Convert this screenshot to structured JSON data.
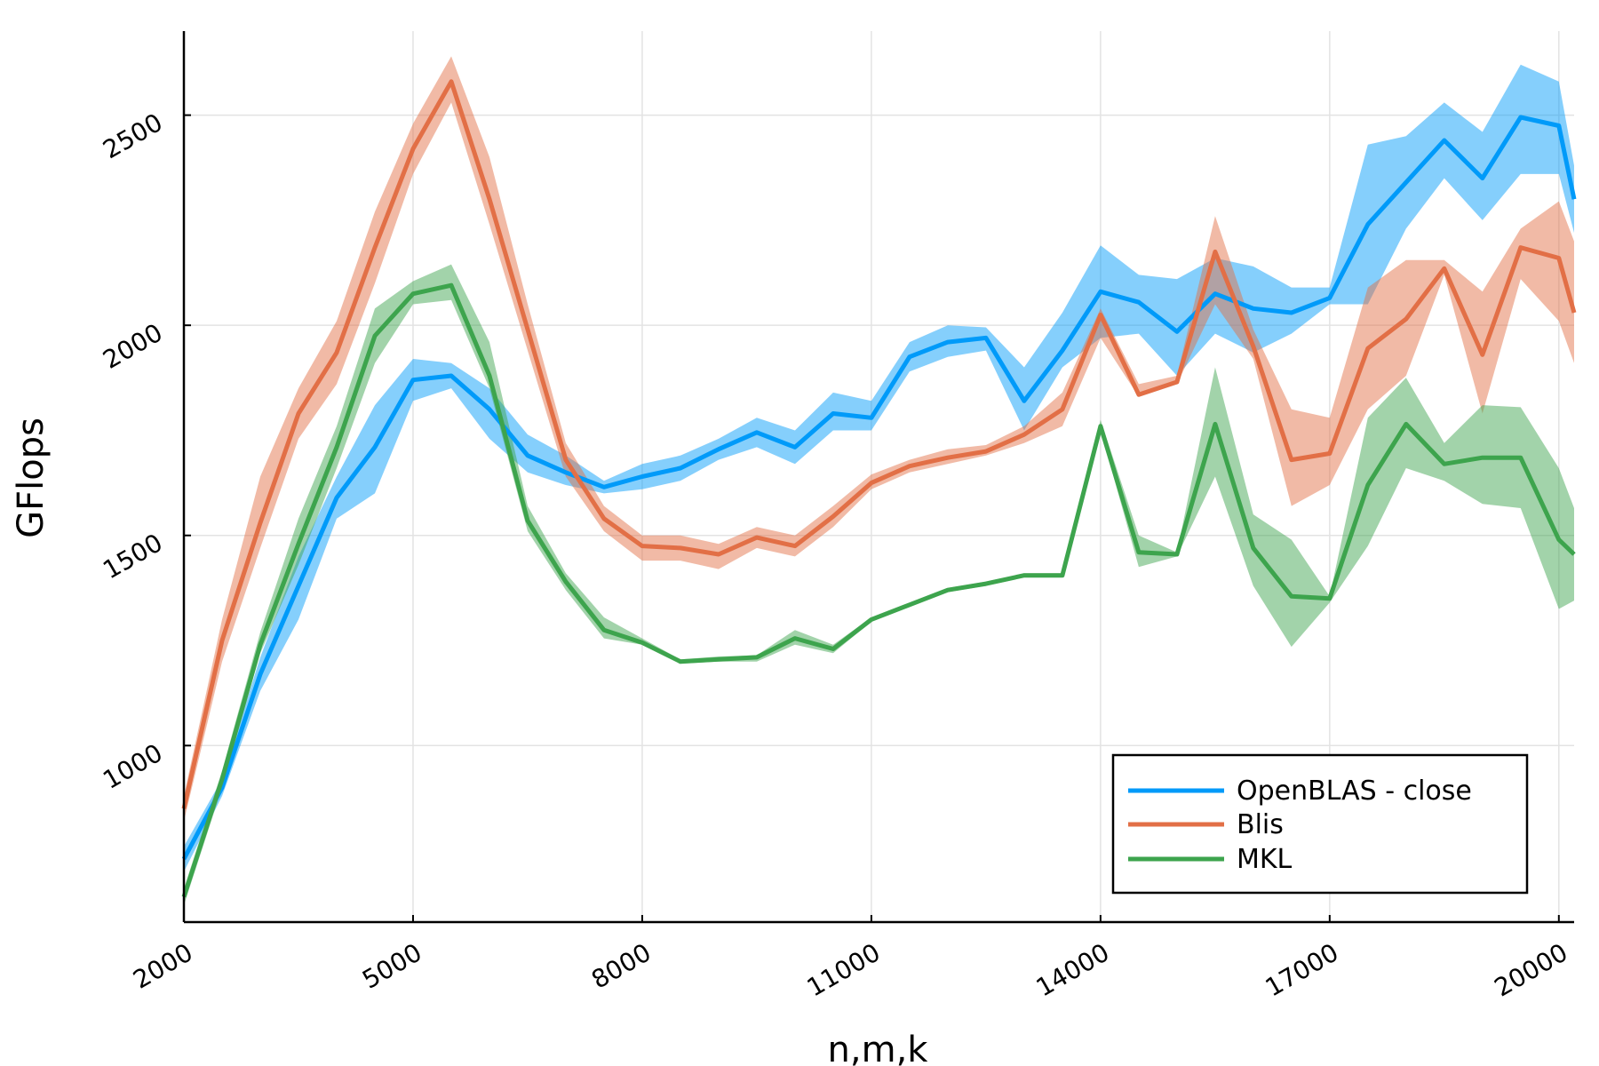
{
  "chart_data": {
    "type": "line",
    "title": "",
    "xlabel": "n,m,k",
    "ylabel": "GFlops",
    "xlim": [
      2000,
      20200
    ],
    "ylim": [
      580,
      2700
    ],
    "xticks": [
      2000,
      5000,
      8000,
      11000,
      14000,
      17000,
      20000
    ],
    "yticks": [
      1000,
      1500,
      2000,
      2500
    ],
    "grid": true,
    "legend_position": "bottom-right",
    "x": [
      2000,
      2500,
      3000,
      3500,
      4000,
      4500,
      5000,
      5500,
      6000,
      6500,
      7000,
      7500,
      8000,
      8500,
      9000,
      9500,
      10000,
      10500,
      11000,
      11500,
      12000,
      12500,
      13000,
      13500,
      14000,
      14500,
      15000,
      15500,
      16000,
      16500,
      17000,
      17500,
      18000,
      18500,
      19000,
      19500,
      20000,
      20200
    ],
    "series": [
      {
        "name": "OpenBLAS - close",
        "color": "#009af9",
        "values": [
          730,
          900,
          1170,
          1380,
          1590,
          1710,
          1870,
          1880,
          1800,
          1690,
          1650,
          1615,
          1640,
          1660,
          1705,
          1745,
          1710,
          1790,
          1780,
          1925,
          1960,
          1970,
          1820,
          1940,
          2080,
          2055,
          1985,
          2075,
          2040,
          2030,
          2065,
          2240,
          2340,
          2440,
          2350,
          2495,
          2475,
          2300
        ],
        "lower": [
          700,
          880,
          1130,
          1300,
          1540,
          1600,
          1820,
          1850,
          1730,
          1650,
          1620,
          1600,
          1610,
          1630,
          1680,
          1710,
          1670,
          1750,
          1750,
          1890,
          1925,
          1940,
          1750,
          1900,
          1970,
          1980,
          1880,
          1980,
          1935,
          1980,
          2050,
          2050,
          2230,
          2350,
          2250,
          2360,
          2360,
          2220
        ],
        "upper": [
          760,
          920,
          1210,
          1450,
          1640,
          1810,
          1920,
          1910,
          1850,
          1740,
          1690,
          1630,
          1670,
          1690,
          1730,
          1780,
          1750,
          1840,
          1820,
          1960,
          2000,
          1995,
          1900,
          2030,
          2190,
          2120,
          2110,
          2160,
          2140,
          2090,
          2090,
          2430,
          2450,
          2530,
          2460,
          2620,
          2580,
          2380
        ]
      },
      {
        "name": "Blis",
        "color": "#e26f46",
        "values": [
          850,
          1250,
          1530,
          1790,
          1935,
          2185,
          2420,
          2580,
          2300,
          1990,
          1680,
          1540,
          1475,
          1470,
          1455,
          1495,
          1475,
          1545,
          1625,
          1665,
          1685,
          1700,
          1740,
          1800,
          2025,
          1835,
          1865,
          2175,
          1950,
          1680,
          1695,
          1945,
          2015,
          2135,
          1930,
          2185,
          2160,
          2030
        ],
        "lower": [
          820,
          1200,
          1470,
          1730,
          1860,
          2100,
          2360,
          2530,
          2240,
          1940,
          1640,
          1510,
          1440,
          1440,
          1420,
          1470,
          1450,
          1520,
          1610,
          1650,
          1670,
          1690,
          1720,
          1760,
          1970,
          1830,
          1860,
          2050,
          1920,
          1570,
          1620,
          1800,
          1880,
          2120,
          1790,
          2110,
          2010,
          1910
        ],
        "upper": [
          880,
          1300,
          1640,
          1850,
          2010,
          2270,
          2480,
          2640,
          2400,
          2050,
          1720,
          1570,
          1500,
          1500,
          1480,
          1520,
          1500,
          1570,
          1645,
          1680,
          1705,
          1715,
          1760,
          1840,
          2040,
          1860,
          1880,
          2260,
          1990,
          1800,
          1780,
          2090,
          2155,
          2155,
          2080,
          2230,
          2295,
          2200
        ]
      },
      {
        "name": "MKL",
        "color": "#3da44d",
        "values": [
          640,
          920,
          1240,
          1480,
          1710,
          1975,
          2075,
          2095,
          1880,
          1535,
          1390,
          1275,
          1245,
          1200,
          1205,
          1210,
          1255,
          1230,
          1300,
          1335,
          1370,
          1385,
          1405,
          1405,
          1760,
          1460,
          1455,
          1765,
          1470,
          1355,
          1350,
          1620,
          1765,
          1670,
          1685,
          1685,
          1490,
          1455
        ],
        "lower": [
          620,
          900,
          1220,
          1430,
          1660,
          1910,
          2050,
          2060,
          1850,
          1510,
          1370,
          1255,
          1240,
          1195,
          1200,
          1200,
          1240,
          1220,
          1295,
          1330,
          1365,
          1380,
          1400,
          1400,
          1750,
          1425,
          1450,
          1640,
          1380,
          1235,
          1340,
          1475,
          1660,
          1630,
          1575,
          1565,
          1325,
          1345
        ],
        "upper": [
          660,
          940,
          1270,
          1540,
          1760,
          2040,
          2105,
          2145,
          1960,
          1570,
          1410,
          1305,
          1255,
          1205,
          1212,
          1215,
          1275,
          1240,
          1305,
          1340,
          1375,
          1390,
          1410,
          1410,
          1775,
          1500,
          1460,
          1900,
          1550,
          1490,
          1355,
          1780,
          1875,
          1720,
          1810,
          1805,
          1660,
          1565
        ]
      }
    ]
  }
}
